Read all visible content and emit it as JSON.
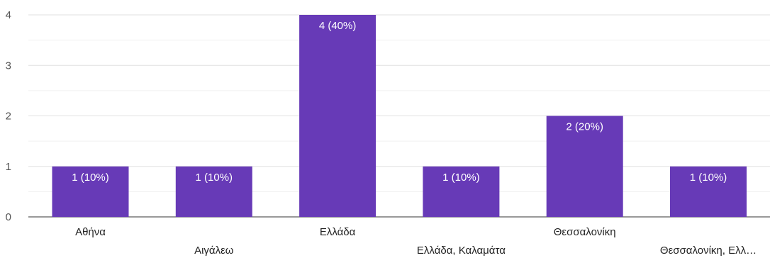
{
  "chart_data": {
    "type": "bar",
    "categories": [
      "Αθήνα",
      "Αιγάλεω",
      "Ελλάδα",
      "Ελλάδα, Καλαμάτα",
      "Θεσσαλονίκη",
      "Θεσσαλονίκη, Ελλ…"
    ],
    "values": [
      1,
      1,
      4,
      1,
      2,
      1
    ],
    "data_labels": [
      "1 (10%)",
      "1 (10%)",
      "4 (40%)",
      "1 (10%)",
      "2 (20%)",
      "1 (10%)"
    ],
    "y_ticks": [
      "0",
      "1",
      "2",
      "3",
      "4"
    ],
    "ylim": [
      0,
      4
    ],
    "grid": true,
    "bar_color": "#673ab7",
    "title": "",
    "xlabel": "",
    "ylabel": ""
  }
}
